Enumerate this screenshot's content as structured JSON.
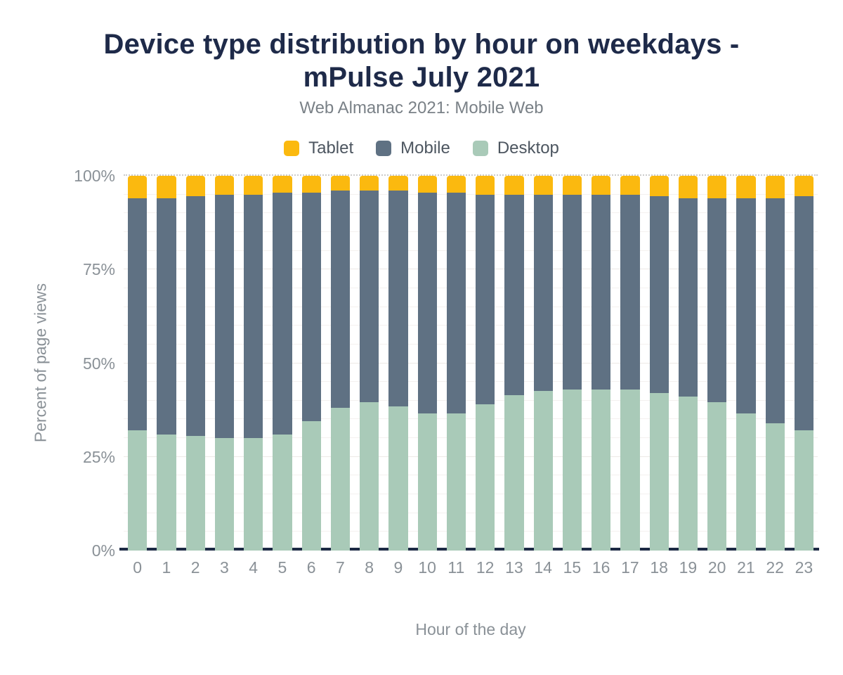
{
  "header": {
    "title_lines": [
      "Device type distribution by hour on weekdays -",
      "mPulse July 2021"
    ],
    "subtitle": "Web Almanac 2021: Mobile Web"
  },
  "legend": {
    "items": [
      {
        "label": "Tablet",
        "color": "#FBB90F"
      },
      {
        "label": "Mobile",
        "color": "#5F7183"
      },
      {
        "label": "Desktop",
        "color": "#A9CAB8"
      }
    ]
  },
  "axes": {
    "xlabel": "Hour of the day",
    "ylabel": "Percent of page views"
  },
  "colors": {
    "title": "#1E2A49",
    "subtitle": "#7A8187",
    "axis_text": "#8A9197",
    "legend_text": "#4D5660",
    "baseline": "#1C2A44",
    "tablet": "#FBB90F",
    "mobile": "#5F7183",
    "desktop": "#A9CAB8"
  },
  "chart_data": {
    "type": "bar",
    "stacked": true,
    "title": "Device type distribution by hour on weekdays - mPulse July 2021",
    "subtitle": "Web Almanac 2021: Mobile Web",
    "xlabel": "Hour of the day",
    "ylabel": "Percent of page views",
    "categories": [
      0,
      1,
      2,
      3,
      4,
      5,
      6,
      7,
      8,
      9,
      10,
      11,
      12,
      13,
      14,
      15,
      16,
      17,
      18,
      19,
      20,
      21,
      22,
      23
    ],
    "series": [
      {
        "name": "Tablet",
        "color": "#FBB90F",
        "values": [
          6,
          6,
          5.5,
          5,
          5,
          4.5,
          4.5,
          4,
          4,
          4,
          4.5,
          4.5,
          5,
          5,
          5,
          5,
          5,
          5,
          5.5,
          6,
          6,
          6,
          6,
          5.5
        ]
      },
      {
        "name": "Mobile",
        "color": "#5F7183",
        "values": [
          62,
          63,
          64,
          65,
          65,
          64.5,
          61,
          58,
          56.5,
          57.5,
          59,
          59,
          56,
          53.5,
          52.5,
          52,
          52,
          52,
          52.5,
          53,
          54.5,
          57.5,
          60,
          62.5
        ]
      },
      {
        "name": "Desktop",
        "color": "#A9CAB8",
        "values": [
          32,
          31,
          30.5,
          30,
          30,
          31,
          34.5,
          38,
          39.5,
          38.5,
          36.5,
          36.5,
          39,
          41.5,
          42.5,
          43,
          43,
          43,
          42,
          41,
          39.5,
          36.5,
          34,
          32
        ]
      }
    ],
    "ylim": [
      0,
      100
    ],
    "yticks": [
      "0%",
      "25%",
      "50%",
      "75%",
      "100%"
    ],
    "grid": "horizontal, minor every 5%, dotted line at 100%",
    "legend_position": "top",
    "unit": "percent of page views"
  }
}
